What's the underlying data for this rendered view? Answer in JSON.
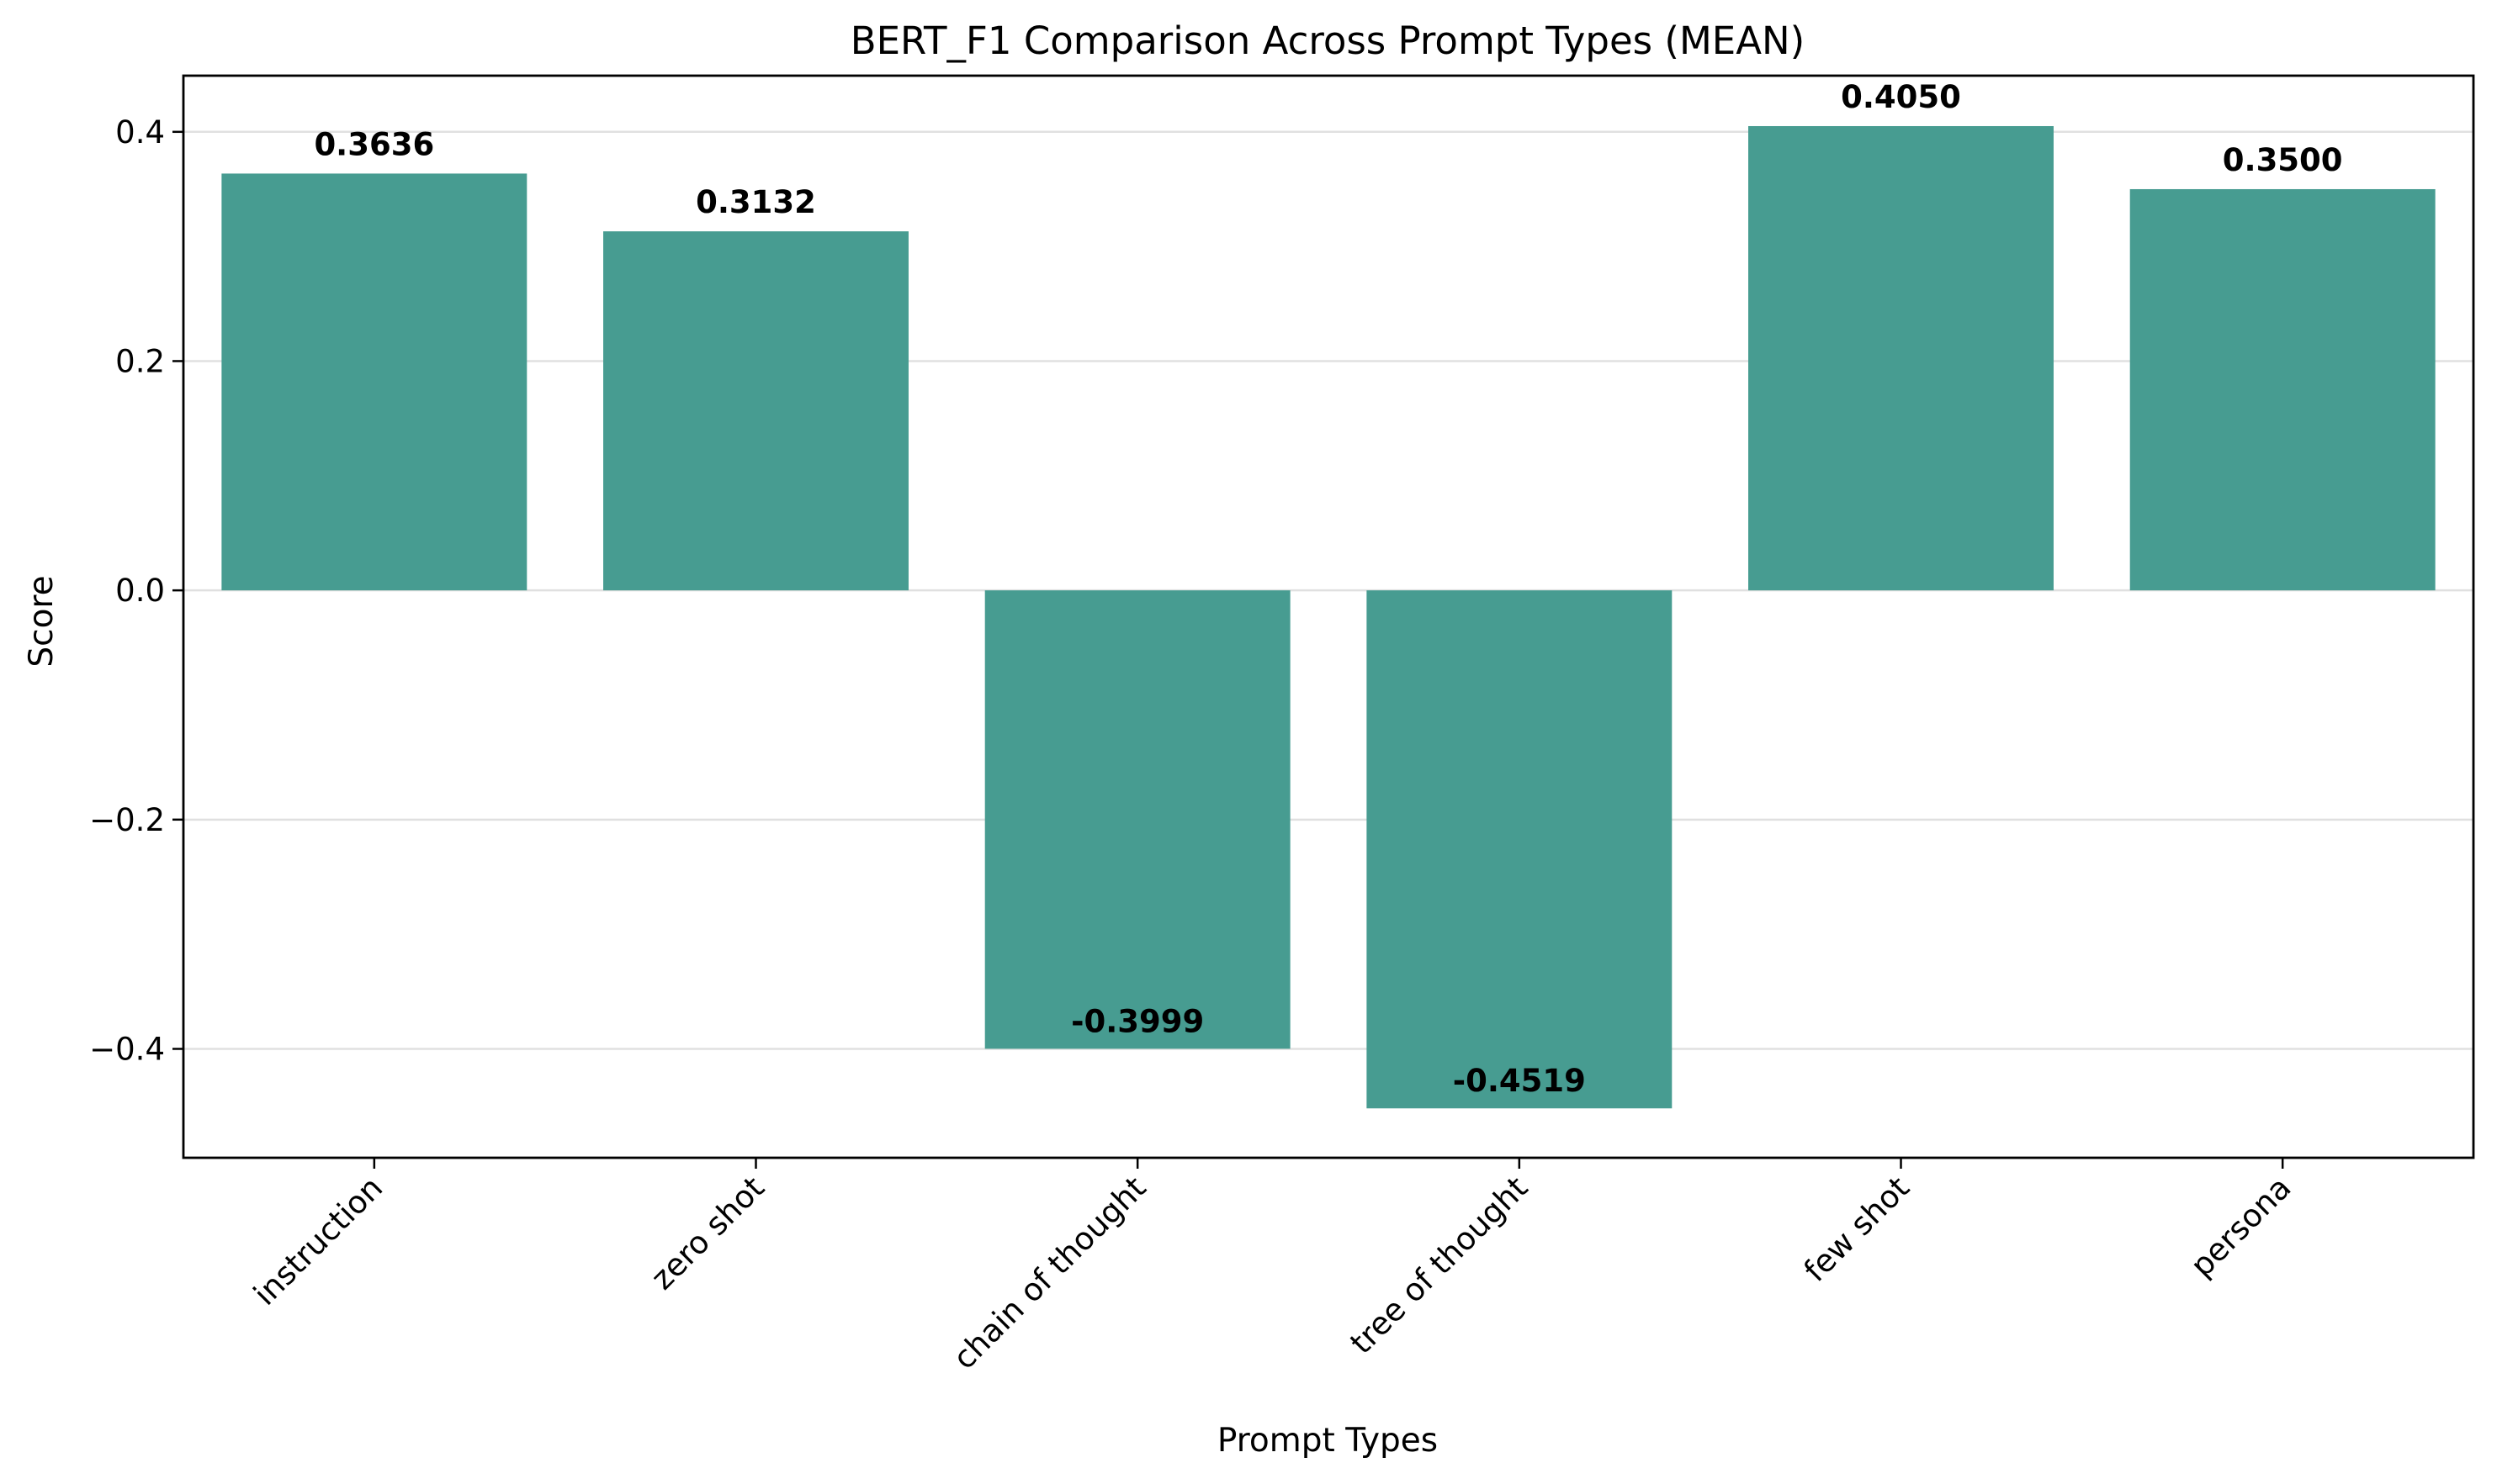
{
  "chart_data": {
    "type": "bar",
    "title": "BERT_F1 Comparison Across Prompt Types (MEAN)",
    "xlabel": "Prompt Types",
    "ylabel": "Score",
    "categories": [
      "instruction",
      "zero shot",
      "chain of thought",
      "tree of thought",
      "few shot",
      "persona"
    ],
    "values": [
      0.3636,
      0.3132,
      -0.3999,
      -0.4519,
      0.405,
      0.35
    ],
    "value_labels": [
      "0.3636",
      "0.3132",
      "-0.3999",
      "-0.4519",
      "0.4050",
      "0.3500"
    ],
    "ylim": [
      -0.495,
      0.449
    ],
    "yticks": [
      0.4,
      0.2,
      0.0,
      -0.2,
      -0.4
    ],
    "ytick_labels": [
      "0.4",
      "0.2",
      "0.0",
      "−0.2",
      "−0.4"
    ],
    "grid": "horizontal",
    "legend": "none",
    "bar_color": "#479c91",
    "tick_rotation_deg": -45
  }
}
